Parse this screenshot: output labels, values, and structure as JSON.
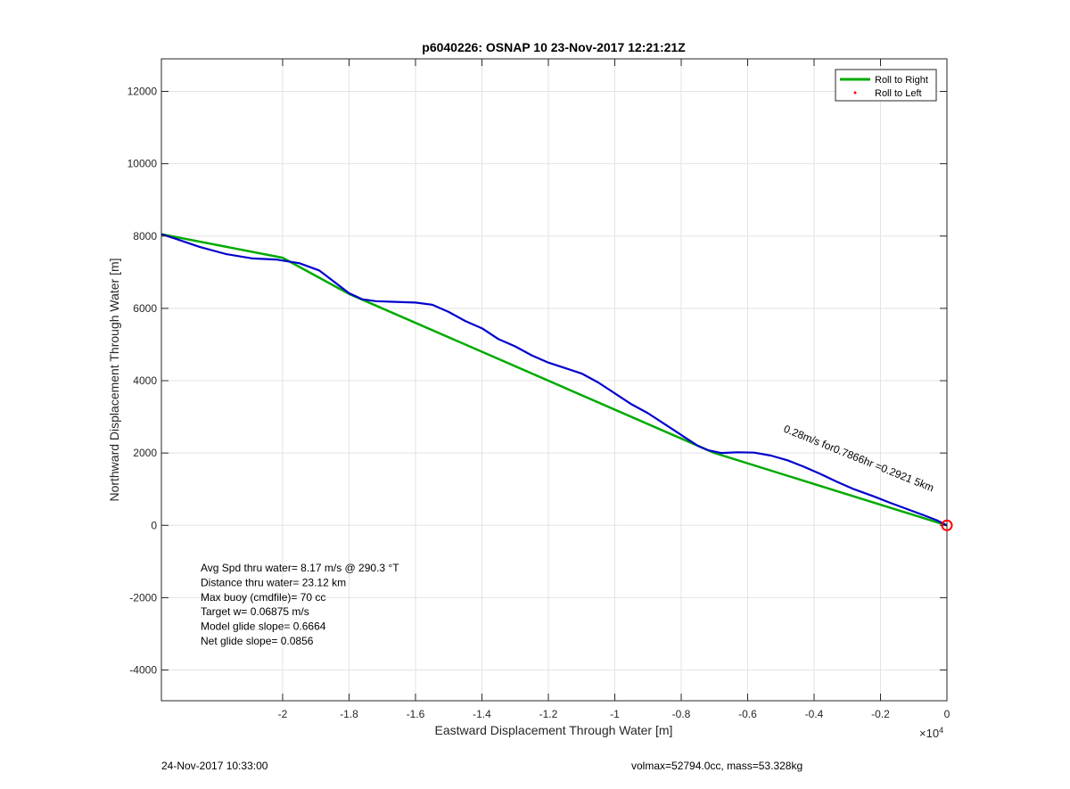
{
  "chart_data": {
    "type": "line",
    "title": "p6040226: OSNAP 10 23-Nov-2017 12:21:21Z",
    "xlabel": "Eastward Displacement Through Water [m]",
    "ylabel": "Northward Displacement Through Water [m]",
    "x_exponent_label": "×10",
    "x_exponent_power": "4",
    "xlim": [
      -23650,
      0
    ],
    "ylim": [
      -4850,
      12900
    ],
    "x_tick_values": [
      -20000,
      -18000,
      -16000,
      -14000,
      -12000,
      -10000,
      -8000,
      -6000,
      -4000,
      -2000,
      0
    ],
    "x_tick_labels": [
      "-2",
      "-1.8",
      "-1.6",
      "-1.4",
      "-1.2",
      "-1",
      "-0.8",
      "-0.6",
      "-0.4",
      "-0.2",
      "0"
    ],
    "y_ticks": [
      -4000,
      -2000,
      0,
      2000,
      4000,
      6000,
      8000,
      10000,
      12000
    ],
    "y_tick_labels": [
      "-4000",
      "-2000",
      "0",
      "2000",
      "4000",
      "6000",
      "8000",
      "10000",
      "12000"
    ],
    "grid": true,
    "legend_position": "top-right",
    "series": [
      {
        "name": "Roll to Right",
        "color": "#00aa00",
        "style": "line",
        "x": [
          0,
          -7000,
          -18000,
          -20000,
          -23650
        ],
        "y": [
          0,
          2000,
          6400,
          7400,
          8050
        ]
      },
      {
        "name": "Roll to Left",
        "color": "#ff0000",
        "style": "point",
        "x": [],
        "y": []
      },
      {
        "name": "",
        "color": "#0000cc",
        "style": "line",
        "x": [
          -23650,
          -23300,
          -22500,
          -21700,
          -20900,
          -20200,
          -19500,
          -18900,
          -18400,
          -18000,
          -17600,
          -17200,
          -16600,
          -16000,
          -15500,
          -15000,
          -14500,
          -14000,
          -13500,
          -13000,
          -12500,
          -12000,
          -11500,
          -11000,
          -10500,
          -10000,
          -9500,
          -9000,
          -8500,
          -8000,
          -7500,
          -7200,
          -6800,
          -6300,
          -5800,
          -5300,
          -4800,
          -4300,
          -3800,
          -3300,
          -2800,
          -2200,
          -1700,
          -1200,
          -700,
          -300,
          0
        ],
        "y": [
          8050,
          7950,
          7700,
          7500,
          7380,
          7350,
          7250,
          7050,
          6700,
          6420,
          6250,
          6200,
          6180,
          6160,
          6100,
          5900,
          5650,
          5450,
          5150,
          4950,
          4700,
          4500,
          4350,
          4200,
          3950,
          3650,
          3350,
          3100,
          2800,
          2500,
          2200,
          2080,
          2000,
          2020,
          2010,
          1930,
          1800,
          1620,
          1420,
          1200,
          1000,
          800,
          620,
          450,
          280,
          140,
          0
        ]
      }
    ],
    "markers": [
      {
        "name": "end-circle",
        "x": 0,
        "y": 0,
        "color": "#ff0000"
      }
    ],
    "annotations": {
      "rotated_label": "0.28m/s for0.7866hr =0.2921 5km",
      "stats": [
        "Avg Spd thru water=  8.17 m/s @ 290.3 °T",
        "Distance thru water= 23.12 km",
        "Max buoy (cmdfile)= 70 cc",
        "Target w= 0.06875 m/s",
        "Model glide slope= 0.6664",
        "Net glide slope= 0.0856"
      ]
    }
  },
  "footer": {
    "timestamp": "24-Nov-2017 10:33:00",
    "volmax": "volmax=52794.0cc, mass=53.328kg"
  }
}
